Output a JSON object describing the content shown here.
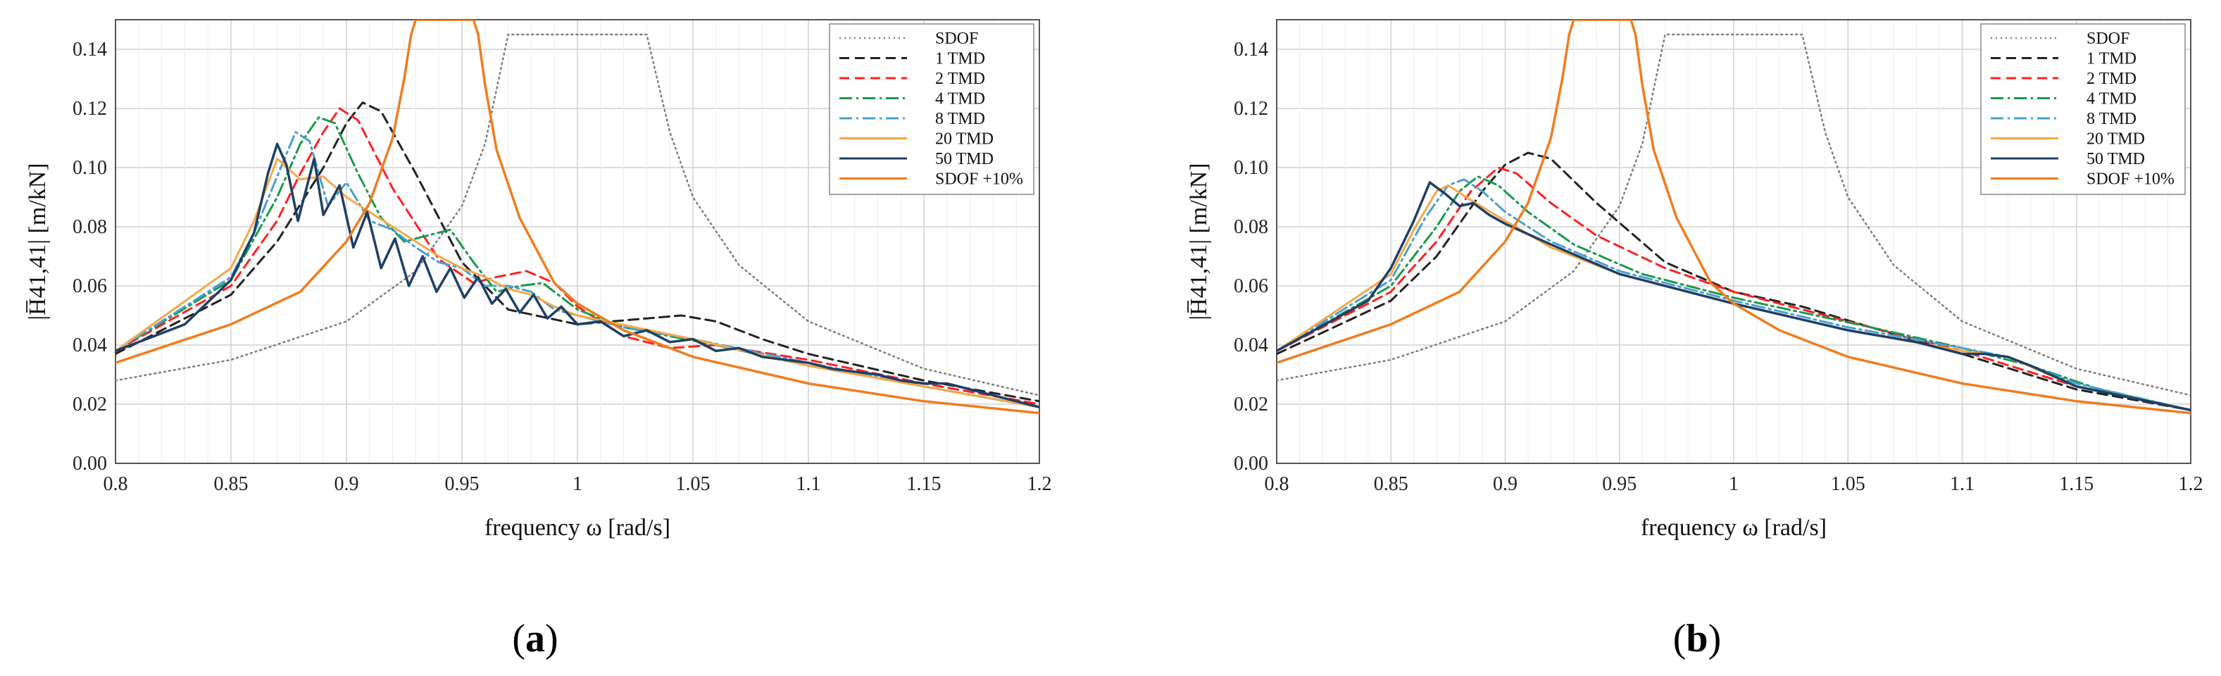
{
  "figure": {
    "xlabel": "frequency ω [rad/s]",
    "ylabel": "|H̅41,41| [m/kN]"
  },
  "chart_data": [
    {
      "type": "line",
      "panel_label": "a",
      "xlim": [
        0.8,
        1.2
      ],
      "ylim": [
        0.0,
        0.15
      ],
      "x_ticks": [
        0.8,
        0.85,
        0.9,
        0.95,
        1.0,
        1.05,
        1.1,
        1.15,
        1.2
      ],
      "x_tick_labels": [
        "0.8",
        "0.85",
        "0.9",
        "0.95",
        "1",
        "1.05",
        "1.1",
        "1.15",
        "1.2"
      ],
      "y_ticks": [
        0.0,
        0.02,
        0.04,
        0.06,
        0.08,
        0.1,
        0.12,
        0.14
      ],
      "y_tick_labels": [
        "0.00",
        "0.02",
        "0.04",
        "0.06",
        "0.08",
        "0.10",
        "0.12",
        "0.14"
      ],
      "xlabel": "frequency ω [rad/s]",
      "ylabel": "|H̅41,41| [m/kN]",
      "grid": true,
      "legend_position": "top-right",
      "series": [
        {
          "name": "SDOF",
          "color": "#7f7f7f",
          "style": "dotted",
          "x": [
            0.8,
            0.85,
            0.9,
            0.93,
            0.95,
            0.96,
            0.97,
            1.03,
            1.04,
            1.05,
            1.07,
            1.1,
            1.15,
            1.2
          ],
          "y": [
            0.028,
            0.035,
            0.048,
            0.065,
            0.087,
            0.108,
            0.145,
            0.145,
            0.112,
            0.09,
            0.067,
            0.048,
            0.032,
            0.023
          ]
        },
        {
          "name": "1 TMD",
          "color": "#222222",
          "style": "dashed",
          "x": [
            0.8,
            0.85,
            0.87,
            0.89,
            0.9,
            0.907,
            0.915,
            0.93,
            0.95,
            0.97,
            1.0,
            1.03,
            1.045,
            1.06,
            1.08,
            1.1,
            1.15,
            1.2
          ],
          "y": [
            0.037,
            0.057,
            0.075,
            0.1,
            0.115,
            0.122,
            0.119,
            0.098,
            0.068,
            0.052,
            0.047,
            0.049,
            0.05,
            0.048,
            0.042,
            0.037,
            0.028,
            0.021
          ]
        },
        {
          "name": "2 TMD",
          "color": "#ff2020",
          "style": "dashed",
          "x": [
            0.8,
            0.85,
            0.87,
            0.88,
            0.89,
            0.897,
            0.905,
            0.92,
            0.94,
            0.955,
            0.965,
            0.978,
            0.99,
            1.0,
            1.02,
            1.04,
            1.06,
            1.1,
            1.15,
            1.2
          ],
          "y": [
            0.038,
            0.06,
            0.082,
            0.098,
            0.112,
            0.12,
            0.116,
            0.093,
            0.069,
            0.061,
            0.063,
            0.065,
            0.061,
            0.053,
            0.043,
            0.039,
            0.04,
            0.035,
            0.027,
            0.02
          ]
        },
        {
          "name": "4 TMD",
          "color": "#1a9a4a",
          "style": "dashdot",
          "x": [
            0.8,
            0.85,
            0.87,
            0.88,
            0.888,
            0.895,
            0.905,
            0.915,
            0.925,
            0.935,
            0.945,
            0.955,
            0.965,
            0.975,
            0.985,
            1.0,
            1.02,
            1.04,
            1.06,
            1.1,
            1.15,
            1.2
          ],
          "y": [
            0.038,
            0.062,
            0.09,
            0.108,
            0.117,
            0.115,
            0.098,
            0.083,
            0.075,
            0.077,
            0.079,
            0.068,
            0.058,
            0.06,
            0.061,
            0.052,
            0.046,
            0.043,
            0.04,
            0.033,
            0.026,
            0.019
          ]
        },
        {
          "name": "8 TMD",
          "color": "#4a9fd0",
          "style": "dashdot",
          "x": [
            0.8,
            0.85,
            0.86,
            0.87,
            0.878,
            0.884,
            0.892,
            0.9,
            0.91,
            0.92,
            0.93,
            0.94,
            0.95,
            0.96,
            0.97,
            0.98,
            0.99,
            1.0,
            1.02,
            1.05,
            1.1,
            1.15,
            1.2
          ],
          "y": [
            0.038,
            0.063,
            0.078,
            0.097,
            0.112,
            0.109,
            0.087,
            0.095,
            0.082,
            0.079,
            0.073,
            0.068,
            0.066,
            0.06,
            0.06,
            0.058,
            0.052,
            0.05,
            0.046,
            0.042,
            0.034,
            0.026,
            0.019
          ]
        },
        {
          "name": "20 TMD",
          "color": "#f5a84a",
          "style": "solid",
          "x": [
            0.8,
            0.85,
            0.86,
            0.87,
            0.88,
            0.89,
            0.9,
            0.91,
            0.92,
            0.93,
            0.94,
            0.95,
            0.96,
            0.97,
            0.98,
            0.99,
            1.0,
            1.05,
            1.1,
            1.15,
            1.2
          ],
          "y": [
            0.038,
            0.066,
            0.082,
            0.103,
            0.096,
            0.097,
            0.09,
            0.085,
            0.08,
            0.075,
            0.07,
            0.066,
            0.063,
            0.059,
            0.057,
            0.053,
            0.05,
            0.042,
            0.033,
            0.026,
            0.019
          ]
        },
        {
          "name": "50 TMD",
          "color": "#1f3f66",
          "style": "solid",
          "x": [
            0.8,
            0.83,
            0.85,
            0.86,
            0.866,
            0.87,
            0.874,
            0.879,
            0.886,
            0.89,
            0.897,
            0.903,
            0.909,
            0.915,
            0.921,
            0.927,
            0.933,
            0.939,
            0.945,
            0.951,
            0.957,
            0.963,
            0.969,
            0.975,
            0.981,
            0.987,
            0.993,
            1.0,
            1.01,
            1.02,
            1.03,
            1.04,
            1.05,
            1.06,
            1.07,
            1.08,
            1.09,
            1.1,
            1.11,
            1.12,
            1.13,
            1.14,
            1.15,
            1.16,
            1.17,
            1.18,
            1.2
          ],
          "y": [
            0.038,
            0.047,
            0.062,
            0.078,
            0.098,
            0.108,
            0.101,
            0.082,
            0.103,
            0.084,
            0.094,
            0.073,
            0.085,
            0.066,
            0.076,
            0.06,
            0.07,
            0.058,
            0.066,
            0.056,
            0.063,
            0.054,
            0.059,
            0.051,
            0.057,
            0.049,
            0.053,
            0.047,
            0.048,
            0.043,
            0.045,
            0.041,
            0.042,
            0.038,
            0.039,
            0.036,
            0.035,
            0.034,
            0.032,
            0.031,
            0.03,
            0.028,
            0.027,
            0.027,
            0.025,
            0.023,
            0.019
          ]
        },
        {
          "name": "SDOF +10%",
          "color": "#f07d1e",
          "style": "solid",
          "x": [
            0.8,
            0.85,
            0.88,
            0.9,
            0.91,
            0.92,
            0.925,
            0.928,
            0.93,
            0.955,
            0.957,
            0.96,
            0.965,
            0.975,
            0.99,
            1.0,
            1.02,
            1.05,
            1.1,
            1.15,
            1.2
          ],
          "y": [
            0.034,
            0.047,
            0.058,
            0.075,
            0.088,
            0.11,
            0.13,
            0.145,
            0.15,
            0.15,
            0.145,
            0.128,
            0.106,
            0.083,
            0.061,
            0.054,
            0.045,
            0.036,
            0.027,
            0.021,
            0.017
          ]
        }
      ]
    },
    {
      "type": "line",
      "panel_label": "b",
      "xlim": [
        0.8,
        1.2
      ],
      "ylim": [
        0.0,
        0.15
      ],
      "x_ticks": [
        0.8,
        0.85,
        0.9,
        0.95,
        1.0,
        1.05,
        1.1,
        1.15,
        1.2
      ],
      "x_tick_labels": [
        "0.8",
        "0.85",
        "0.9",
        "0.95",
        "1",
        "1.05",
        "1.1",
        "1.15",
        "1.2"
      ],
      "y_ticks": [
        0.0,
        0.02,
        0.04,
        0.06,
        0.08,
        0.1,
        0.12,
        0.14
      ],
      "y_tick_labels": [
        "0.00",
        "0.02",
        "0.04",
        "0.06",
        "0.08",
        "0.10",
        "0.12",
        "0.14"
      ],
      "xlabel": "frequency ω [rad/s]",
      "ylabel": "|H̅41,41| [m/kN]",
      "grid": true,
      "legend_position": "top-right",
      "series": [
        {
          "name": "SDOF",
          "color": "#7f7f7f",
          "style": "dotted",
          "x": [
            0.8,
            0.85,
            0.9,
            0.93,
            0.95,
            0.96,
            0.97,
            1.03,
            1.04,
            1.05,
            1.07,
            1.1,
            1.15,
            1.2
          ],
          "y": [
            0.028,
            0.035,
            0.048,
            0.065,
            0.087,
            0.108,
            0.145,
            0.145,
            0.112,
            0.09,
            0.067,
            0.048,
            0.032,
            0.023
          ]
        },
        {
          "name": "1 TMD",
          "color": "#222222",
          "style": "dashed",
          "x": [
            0.8,
            0.85,
            0.87,
            0.89,
            0.9,
            0.91,
            0.92,
            0.94,
            0.97,
            1.0,
            1.03,
            1.06,
            1.1,
            1.15,
            1.2
          ],
          "y": [
            0.037,
            0.055,
            0.07,
            0.092,
            0.101,
            0.105,
            0.103,
            0.088,
            0.068,
            0.058,
            0.053,
            0.046,
            0.037,
            0.025,
            0.018
          ]
        },
        {
          "name": "2 TMD",
          "color": "#ff2020",
          "style": "dashed",
          "x": [
            0.8,
            0.85,
            0.87,
            0.885,
            0.897,
            0.905,
            0.92,
            0.94,
            0.97,
            1.0,
            1.03,
            1.06,
            1.1,
            1.15,
            1.2
          ],
          "y": [
            0.038,
            0.058,
            0.075,
            0.092,
            0.1,
            0.098,
            0.088,
            0.077,
            0.066,
            0.058,
            0.052,
            0.046,
            0.038,
            0.026,
            0.018
          ]
        },
        {
          "name": "4 TMD",
          "color": "#1a9a4a",
          "style": "dashdot",
          "x": [
            0.8,
            0.85,
            0.87,
            0.88,
            0.888,
            0.897,
            0.91,
            0.93,
            0.96,
            1.0,
            1.03,
            1.06,
            1.1,
            1.13,
            1.16,
            1.2
          ],
          "y": [
            0.038,
            0.06,
            0.08,
            0.092,
            0.097,
            0.094,
            0.085,
            0.074,
            0.064,
            0.056,
            0.051,
            0.046,
            0.039,
            0.033,
            0.025,
            0.018
          ]
        },
        {
          "name": "8 TMD",
          "color": "#4a9fd0",
          "style": "dashdot",
          "x": [
            0.8,
            0.85,
            0.865,
            0.875,
            0.882,
            0.89,
            0.9,
            0.92,
            0.95,
            1.0,
            1.05,
            1.1,
            1.12,
            1.15,
            1.2
          ],
          "y": [
            0.038,
            0.062,
            0.083,
            0.094,
            0.096,
            0.092,
            0.085,
            0.075,
            0.065,
            0.055,
            0.046,
            0.039,
            0.036,
            0.027,
            0.018
          ]
        },
        {
          "name": "20 TMD",
          "color": "#f5a84a",
          "style": "solid",
          "x": [
            0.8,
            0.85,
            0.86,
            0.87,
            0.875,
            0.885,
            0.9,
            0.92,
            0.95,
            1.0,
            1.05,
            1.1,
            1.12,
            1.15,
            1.2
          ],
          "y": [
            0.038,
            0.064,
            0.079,
            0.092,
            0.094,
            0.089,
            0.082,
            0.073,
            0.064,
            0.054,
            0.045,
            0.038,
            0.036,
            0.026,
            0.018
          ]
        },
        {
          "name": "50 TMD",
          "color": "#1f3f66",
          "style": "solid",
          "x": [
            0.8,
            0.84,
            0.85,
            0.86,
            0.867,
            0.874,
            0.88,
            0.886,
            0.893,
            0.9,
            0.92,
            0.95,
            1.0,
            1.05,
            1.08,
            1.1,
            1.11,
            1.12,
            1.13,
            1.15,
            1.2
          ],
          "y": [
            0.038,
            0.055,
            0.066,
            0.082,
            0.095,
            0.091,
            0.087,
            0.088,
            0.084,
            0.081,
            0.074,
            0.064,
            0.054,
            0.045,
            0.041,
            0.037,
            0.037,
            0.036,
            0.033,
            0.026,
            0.018
          ]
        },
        {
          "name": "SDOF +10%",
          "color": "#f07d1e",
          "style": "solid",
          "x": [
            0.8,
            0.85,
            0.88,
            0.9,
            0.91,
            0.92,
            0.925,
            0.928,
            0.93,
            0.955,
            0.957,
            0.96,
            0.965,
            0.975,
            0.99,
            1.0,
            1.02,
            1.05,
            1.1,
            1.15,
            1.2
          ],
          "y": [
            0.034,
            0.047,
            0.058,
            0.075,
            0.088,
            0.11,
            0.13,
            0.145,
            0.15,
            0.15,
            0.145,
            0.128,
            0.106,
            0.083,
            0.061,
            0.054,
            0.045,
            0.036,
            0.027,
            0.021,
            0.017
          ]
        }
      ]
    }
  ]
}
